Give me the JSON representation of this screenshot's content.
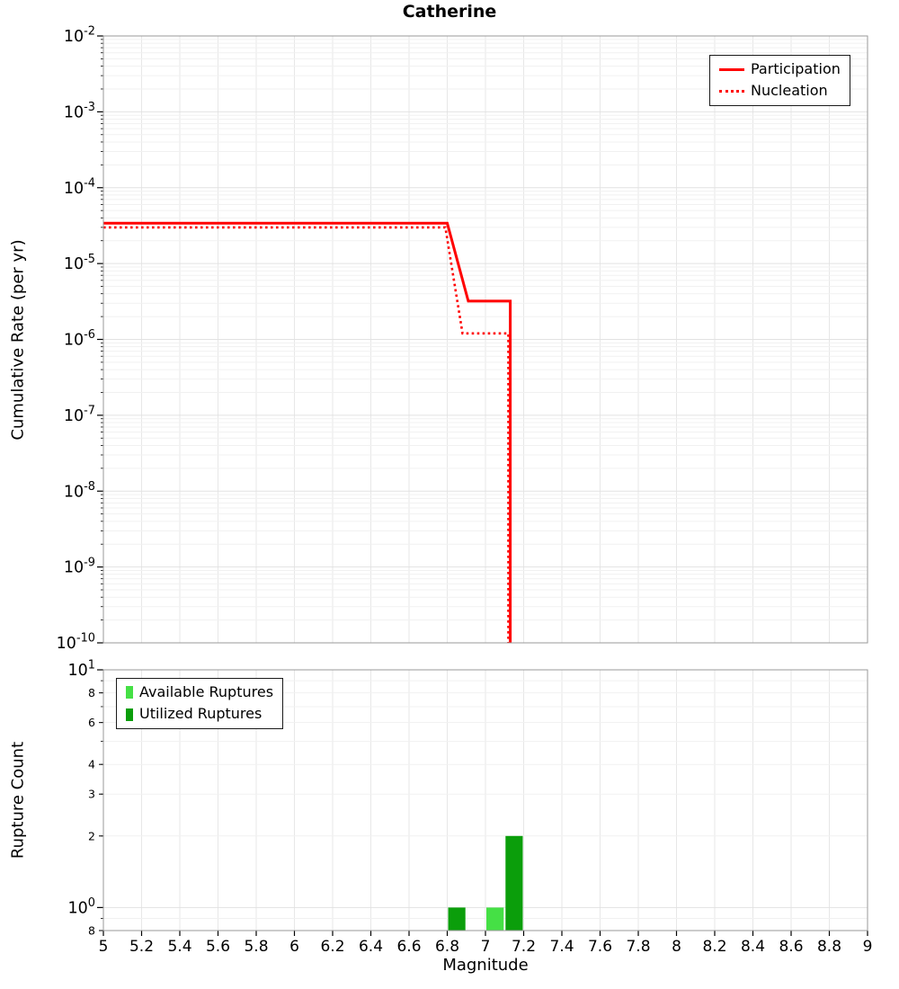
{
  "title": "Catherine",
  "chart_data": [
    {
      "type": "line",
      "title": "Catherine",
      "ylabel": "Cumulative Rate (per yr)",
      "xlabel": "Magnitude",
      "yscale": "log",
      "xlim": [
        5,
        9
      ],
      "ylim": [
        1e-10,
        0.01
      ],
      "grid": true,
      "legend": {
        "position": "top-right",
        "entries": [
          {
            "label": "Participation",
            "style": "solid",
            "color": "#ff0000"
          },
          {
            "label": "Nucleation",
            "style": "dotted",
            "color": "#ff0000"
          }
        ]
      },
      "series": [
        {
          "name": "Participation",
          "style": "solid",
          "color": "#ff0000",
          "points": [
            [
              5.0,
              3.4e-05
            ],
            [
              6.8,
              3.4e-05
            ],
            [
              6.91,
              3.2e-06
            ],
            [
              7.13,
              3.2e-06
            ],
            [
              7.13,
              1e-10
            ]
          ]
        },
        {
          "name": "Nucleation",
          "style": "dotted",
          "color": "#ff0000",
          "points": [
            [
              5.0,
              3e-05
            ],
            [
              6.79,
              3e-05
            ],
            [
              6.88,
              1.2e-06
            ],
            [
              7.12,
              1.2e-06
            ],
            [
              7.12,
              1e-10
            ]
          ]
        }
      ],
      "yticks_exponents": [
        -2,
        -3,
        -4,
        -5,
        -6,
        -7,
        -8,
        -9,
        -10
      ]
    },
    {
      "type": "bar",
      "ylabel": "Rupture Count",
      "xlabel": "Magnitude",
      "yscale": "log",
      "xlim": [
        5,
        9
      ],
      "ylim": [
        0.8,
        10
      ],
      "bar_width": 0.1,
      "grid": true,
      "legend": {
        "position": "top-left",
        "entries": [
          {
            "label": "Available Ruptures",
            "color": "#45e045"
          },
          {
            "label": "Utilized Ruptures",
            "color": "#0b9e0b"
          }
        ]
      },
      "series": [
        {
          "name": "Available Ruptures",
          "color": "#45e045",
          "bars": [
            {
              "x": 7.05,
              "count": 1
            }
          ]
        },
        {
          "name": "Utilized Ruptures",
          "color": "#0b9e0b",
          "bars": [
            {
              "x": 6.85,
              "count": 1
            },
            {
              "x": 7.15,
              "count": 2
            }
          ]
        }
      ],
      "yticks": [
        {
          "v": 10,
          "exp": "1"
        },
        {
          "v": 8,
          "label": "8"
        },
        {
          "v": 6,
          "label": "6"
        },
        {
          "v": 4,
          "label": "4"
        },
        {
          "v": 3,
          "label": "3"
        },
        {
          "v": 2,
          "label": "2"
        },
        {
          "v": 1,
          "exp": "0"
        },
        {
          "v": 0.8,
          "label": "8"
        }
      ],
      "xticks": [
        5,
        5.2,
        5.4,
        5.6,
        5.8,
        6,
        6.2,
        6.4,
        6.6,
        6.8,
        7,
        7.2,
        7.4,
        7.6,
        7.8,
        8,
        8.2,
        8.4,
        8.6,
        8.8,
        9
      ]
    }
  ]
}
